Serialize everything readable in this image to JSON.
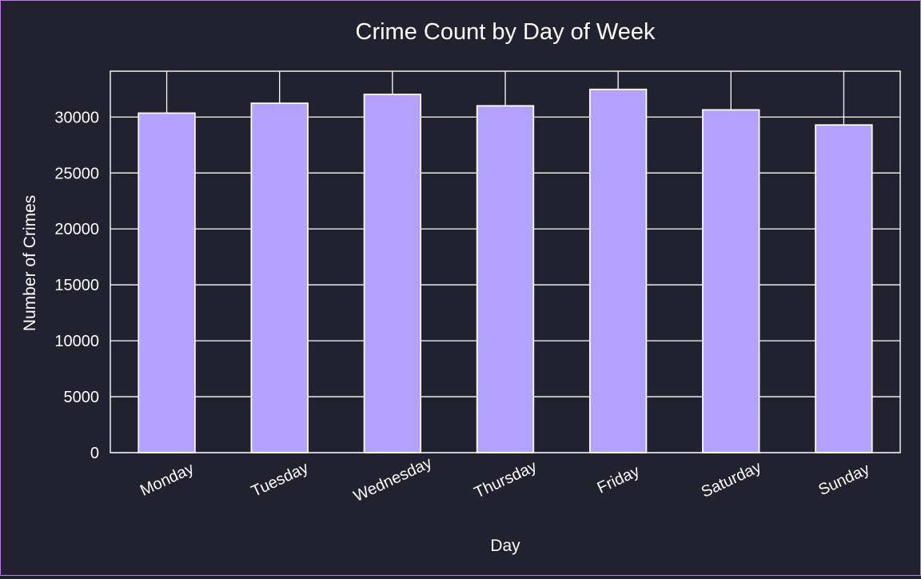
{
  "chart_data": {
    "type": "bar",
    "title": "Crime Count by Day of Week",
    "xlabel": "Day",
    "ylabel": "Number of Crimes",
    "categories": [
      "Monday",
      "Tuesday",
      "Wednesday",
      "Thursday",
      "Friday",
      "Saturday",
      "Sunday"
    ],
    "values": [
      30350,
      31230,
      32020,
      31000,
      32470,
      30640,
      29290
    ],
    "ylim": [
      0,
      34100
    ],
    "yticks": [
      0,
      5000,
      10000,
      15000,
      20000,
      25000,
      30000
    ],
    "ytick_labels": [
      "0",
      "5000",
      "10000",
      "15000",
      "20000",
      "25000",
      "30000"
    ],
    "grid": true,
    "bar_color": "#b3a1ff",
    "edge_color": "#ffffff",
    "background_color": "#22212f"
  }
}
